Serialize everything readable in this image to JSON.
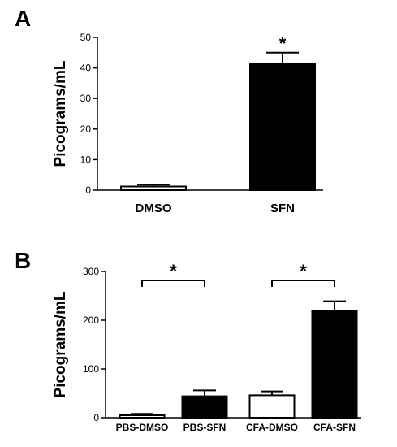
{
  "chart_data": [
    {
      "type": "bar",
      "panel_label": "A",
      "ylabel": "Picograms/mL",
      "ylim": [
        0,
        50
      ],
      "yticks": [
        0,
        10,
        20,
        30,
        40,
        50
      ],
      "categories": [
        "DMSO",
        "SFN"
      ],
      "values": [
        1.2,
        41.5
      ],
      "errors": [
        0.6,
        3.5
      ],
      "fills": [
        "#ffffff",
        "#000000"
      ],
      "significance": [
        {
          "type": "star",
          "category": 1,
          "label": "*"
        }
      ]
    },
    {
      "type": "bar",
      "panel_label": "B",
      "ylabel": "Picograms/mL",
      "ylim": [
        0,
        300
      ],
      "yticks": [
        0,
        100,
        200,
        300
      ],
      "categories": [
        "PBS-DMSO",
        "PBS-SFN",
        "CFA-DMSO",
        "CFA-SFN"
      ],
      "values": [
        5,
        44,
        46,
        219
      ],
      "errors": [
        3,
        12,
        8,
        20
      ],
      "fills": [
        "#ffffff",
        "#000000",
        "#ffffff",
        "#000000"
      ],
      "significance": [
        {
          "type": "bracket",
          "from": 0,
          "to": 1,
          "label": "*"
        },
        {
          "type": "bracket",
          "from": 2,
          "to": 3,
          "label": "*"
        }
      ]
    }
  ]
}
